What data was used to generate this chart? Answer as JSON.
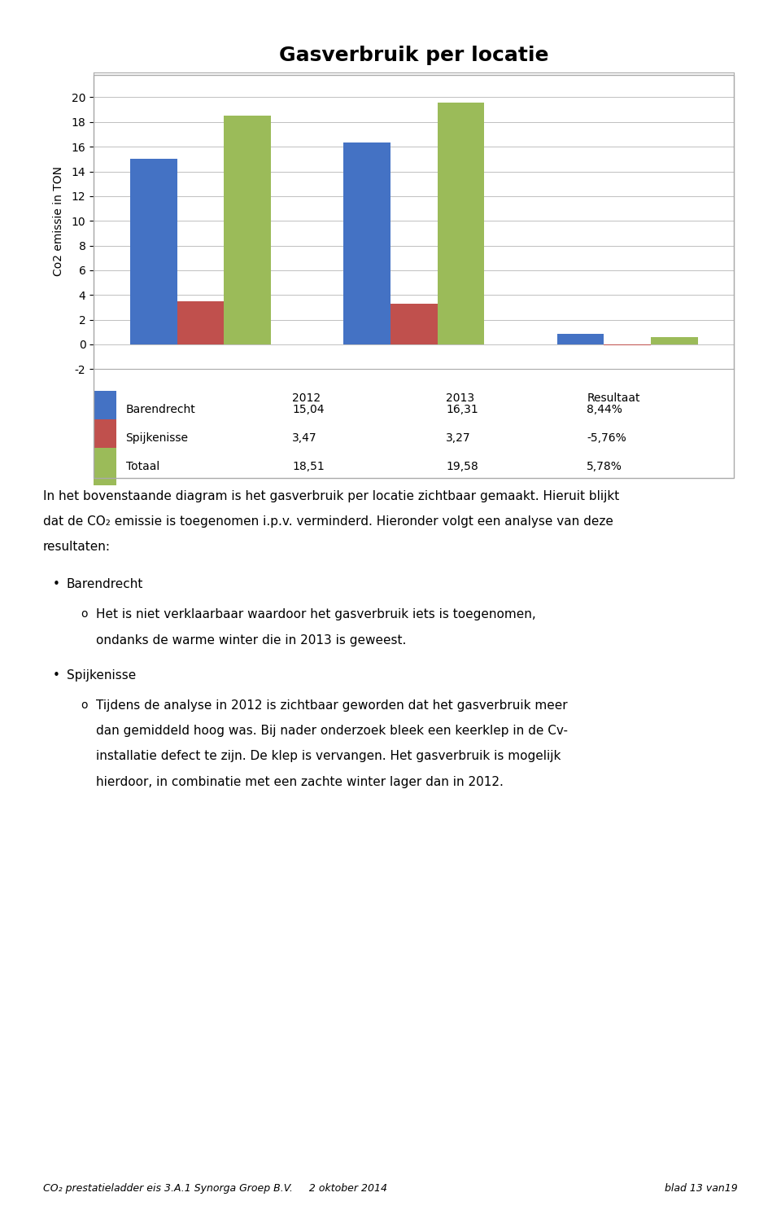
{
  "title": "Gasverbruik per locatie",
  "ylabel": "Co2 emissie in TON",
  "categories": [
    "2012",
    "2013",
    "Resultaat"
  ],
  "series": {
    "Barendrecht": [
      15.04,
      16.31,
      0.8444
    ],
    "Spijkenisse": [
      3.47,
      3.27,
      -0.0576
    ],
    "Totaal": [
      18.51,
      19.58,
      0.5778
    ]
  },
  "colors": {
    "Barendrecht": "#4472C4",
    "Spijkenisse": "#C0504D",
    "Totaal": "#9BBB59"
  },
  "legend_labels": {
    "Barendrecht": [
      "15,04",
      "16,31",
      "8,44%"
    ],
    "Spijkenisse": [
      "3,47",
      "3,27",
      "-5,76%"
    ],
    "Totaal": [
      "18,51",
      "19,58",
      "5,78%"
    ]
  },
  "col_headers": [
    "",
    "2012",
    "2013",
    "Resultaat"
  ],
  "ylim": [
    -2,
    22
  ],
  "yticks": [
    -2,
    0,
    2,
    4,
    6,
    8,
    10,
    12,
    14,
    16,
    18,
    20
  ],
  "background_color": "#FFFFFF",
  "chart_bg": "#FFFFFF",
  "grid_color": "#C0C0C0",
  "title_fontsize": 18,
  "axis_fontsize": 10,
  "legend_fontsize": 10,
  "body_fontsize": 11,
  "footer_left": "CO₂ prestatieladder eis 3.A.1 Synorga Groep B.V.     2 oktober 2014",
  "footer_right": "blad 13 van19",
  "footer_line_color": "#C0504D",
  "intro_lines": [
    "In het bovenstaande diagram is het gasverbruik per locatie zichtbaar gemaakt. Hieruit blijkt",
    "dat de CO₂ emissie is toegenomen i.p.v. verminderd. Hieronder volgt een analyse van deze",
    "resultaten:"
  ],
  "bullet1_main": "Barendrecht",
  "sub1_lines": [
    "Het is niet verklaarbaar waardoor het gasverbruik iets is toegenomen,",
    "ondanks de warme winter die in 2013 is geweest."
  ],
  "bullet2_main": "Spijkenisse",
  "sub2_lines": [
    "Tijdens de analyse in 2012 is zichtbaar geworden dat het gasverbruik meer",
    "dan gemiddeld hoog was. Bij nader onderzoek bleek een keerklep in de Cv-",
    "installatie defect te zijn. De klep is vervangen. Het gasverbruik is mogelijk",
    "hierdoor, in combinatie met een zachte winter lager dan in 2012."
  ]
}
